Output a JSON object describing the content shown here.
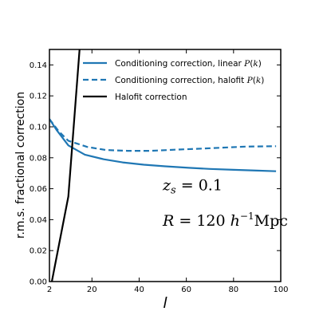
{
  "chart_data": {
    "type": "line",
    "xlabel": "l",
    "ylabel": "r.m.s. fractional correction",
    "xlim": [
      2,
      100
    ],
    "ylim": [
      0.0,
      0.15
    ],
    "x_ticks": [
      2,
      20,
      40,
      60,
      80,
      100
    ],
    "y_ticks": [
      0.0,
      0.02,
      0.04,
      0.06,
      0.08,
      0.1,
      0.12,
      0.14
    ],
    "y_tick_labels": [
      "0.00",
      "0.02",
      "0.04",
      "0.06",
      "0.08",
      "0.10",
      "0.12",
      "0.14"
    ],
    "grid": false,
    "legend_position": "top-right",
    "series": [
      {
        "name": "Conditioning correction, linear P(k)",
        "name_parts": [
          "Conditioning correction, linear ",
          "P",
          "(",
          "k",
          ")"
        ],
        "color": "#1f77b4",
        "style": "solid",
        "x": [
          2,
          5,
          10,
          17,
          25,
          33,
          42,
          51,
          61,
          70,
          80,
          90,
          98
        ],
        "y": [
          0.105,
          0.098,
          0.088,
          0.082,
          0.079,
          0.077,
          0.0755,
          0.0745,
          0.0735,
          0.0728,
          0.0722,
          0.0717,
          0.0713
        ]
      },
      {
        "name": "Conditioning correction, halofit P(k)",
        "name_parts": [
          "Conditioning correction, halofit ",
          "P",
          "(",
          "k",
          ")"
        ],
        "color": "#1f77b4",
        "style": "dashed",
        "x": [
          2,
          6,
          10,
          18,
          26,
          35,
          45,
          55,
          65,
          75,
          85,
          98
        ],
        "y": [
          0.105,
          0.097,
          0.091,
          0.087,
          0.085,
          0.0845,
          0.0845,
          0.0852,
          0.0858,
          0.0865,
          0.0872,
          0.0875
        ]
      },
      {
        "name": "Halofit correction",
        "color": "#000000",
        "style": "solid",
        "x": [
          3,
          10,
          15
        ],
        "y": [
          0.0,
          0.055,
          0.155
        ]
      }
    ],
    "annotations": [
      {
        "text": "z_s = 0.1",
        "parts": [
          "z",
          "s",
          " = 0.1"
        ],
        "x": 50,
        "y": 0.059
      },
      {
        "text": "R = 120 h^{-1}Mpc",
        "parts": [
          "R",
          " = 120 ",
          "h",
          "−1",
          "Mpc"
        ],
        "x": 50,
        "y": 0.036
      }
    ]
  }
}
